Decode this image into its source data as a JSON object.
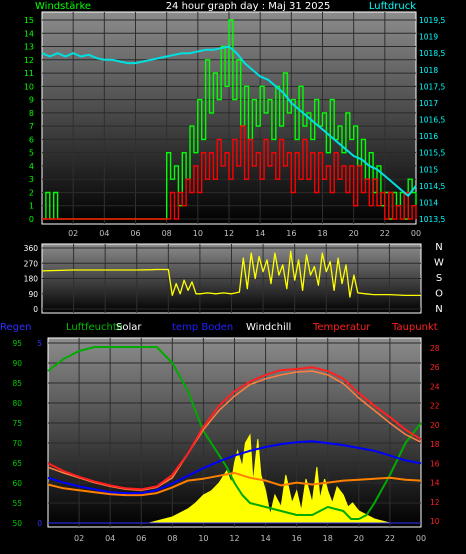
{
  "title": "24 hour graph day : Maj 31 2025",
  "colors": {
    "background": "#000000",
    "plot_top": "#8a8a8a",
    "plot_bottom": "#000000",
    "wind_speed": "#ff0000",
    "wind_gust": "#00ff00",
    "pressure": "#00e0e0",
    "direction": "#ffff00",
    "humidity": "#00aa00",
    "solar": "#ffff00",
    "temp_indoor": "#0000ff",
    "windchill": "#ff7f3f",
    "temperature": "#ff2020",
    "dewpoint": "#ff8000",
    "rain": "#3030ff"
  },
  "chart_data": [
    {
      "type": "line",
      "labels": {
        "left": "Windstärke",
        "right": "Luftdruck"
      },
      "x_ticks": [
        "02",
        "04",
        "06",
        "08",
        "10",
        "12",
        "14",
        "16",
        "18",
        "20",
        "22",
        "00"
      ],
      "x_range": [
        0,
        24
      ],
      "left_axis": {
        "ticks": [
          "0",
          "1",
          "2",
          "3",
          "4",
          "5",
          "6",
          "7",
          "8",
          "9",
          "10",
          "11",
          "12",
          "13",
          "14",
          "15"
        ],
        "range": [
          0,
          15
        ]
      },
      "right_axis": {
        "ticks": [
          "1013,5",
          "1014",
          "1014,5",
          "1015",
          "1015,5",
          "1016",
          "1016,5",
          "1017",
          "1017,5",
          "1018",
          "1018,5",
          "1019",
          "1019,5"
        ],
        "range": [
          1013.5,
          1019.5
        ]
      },
      "grid": true,
      "series": [
        {
          "name": "Luftdruck",
          "axis": "right",
          "x": [
            0,
            0.5,
            1,
            1.5,
            2,
            2.5,
            3,
            3.5,
            4,
            4.5,
            5,
            5.5,
            6,
            6.5,
            7,
            7.5,
            8,
            8.5,
            9,
            9.5,
            10,
            10.5,
            11,
            11.5,
            12,
            12.5,
            13,
            13.5,
            14,
            14.5,
            15,
            15.5,
            16,
            16.5,
            17,
            17.5,
            18,
            18.5,
            19,
            19.5,
            20,
            20.5,
            21,
            21.5,
            22,
            22.5,
            23,
            23.5,
            24
          ],
          "values": [
            1018.5,
            1018.4,
            1018.5,
            1018.4,
            1018.5,
            1018.4,
            1018.45,
            1018.35,
            1018.3,
            1018.3,
            1018.25,
            1018.2,
            1018.2,
            1018.25,
            1018.3,
            1018.35,
            1018.4,
            1018.45,
            1018.5,
            1018.5,
            1018.55,
            1018.6,
            1018.6,
            1018.65,
            1018.7,
            1018.5,
            1018.2,
            1018.0,
            1017.8,
            1017.7,
            1017.5,
            1017.3,
            1017.0,
            1016.8,
            1016.6,
            1016.4,
            1016.2,
            1016.0,
            1015.8,
            1015.6,
            1015.4,
            1015.3,
            1015.1,
            1015.0,
            1014.8,
            1014.6,
            1014.4,
            1014.2,
            1014.5
          ]
        },
        {
          "name": "Wind gust",
          "axis": "left",
          "x": [
            0,
            0.25,
            0.5,
            0.75,
            1.0,
            1.25,
            7.75,
            8.0,
            8.25,
            8.5,
            8.75,
            9.0,
            9.25,
            9.5,
            9.75,
            10.0,
            10.25,
            10.5,
            10.75,
            11.0,
            11.25,
            11.5,
            11.75,
            12.0,
            12.25,
            12.5,
            12.75,
            13.0,
            13.25,
            13.5,
            13.75,
            14.0,
            14.25,
            14.5,
            14.75,
            15.0,
            15.25,
            15.5,
            15.75,
            16.0,
            16.25,
            16.5,
            16.75,
            17.0,
            17.25,
            17.5,
            17.75,
            18.0,
            18.25,
            18.5,
            18.75,
            19.0,
            19.25,
            19.5,
            19.75,
            20.0,
            20.25,
            20.5,
            20.75,
            21.0,
            21.25,
            21.5,
            21.75,
            22.0,
            22.25,
            22.5,
            22.75,
            23.0,
            23.25,
            23.5,
            23.75,
            24.0
          ],
          "values": [
            0,
            2,
            0,
            2,
            0,
            0,
            0,
            5,
            3,
            4,
            1,
            5,
            3,
            7,
            5,
            9,
            6,
            12,
            8,
            11,
            9,
            13,
            10,
            15,
            9,
            12,
            7,
            10,
            6,
            9,
            7,
            10,
            8,
            9,
            6,
            10,
            7,
            11,
            8,
            9,
            6,
            10,
            7,
            8,
            6,
            9,
            7,
            8,
            5,
            9,
            6,
            7,
            5,
            8,
            6,
            7,
            4,
            6,
            3,
            5,
            2,
            4,
            1,
            2,
            0,
            2,
            1,
            2,
            0,
            3,
            2,
            1
          ]
        },
        {
          "name": "Wind speed",
          "axis": "left",
          "x": [
            0,
            8.0,
            8.25,
            8.5,
            8.75,
            9.0,
            9.25,
            9.5,
            9.75,
            10.0,
            10.25,
            10.5,
            10.75,
            11.0,
            11.25,
            11.5,
            11.75,
            12.0,
            12.25,
            12.5,
            12.75,
            13.0,
            13.25,
            13.5,
            13.75,
            14.0,
            14.25,
            14.5,
            14.75,
            15.0,
            15.25,
            15.5,
            15.75,
            16.0,
            16.25,
            16.5,
            16.75,
            17.0,
            17.25,
            17.5,
            17.75,
            18.0,
            18.25,
            18.5,
            18.75,
            19.0,
            19.25,
            19.5,
            19.75,
            20.0,
            20.25,
            20.5,
            20.75,
            21.0,
            21.25,
            21.5,
            21.75,
            22.0,
            22.25,
            22.5,
            22.75,
            23.0,
            23.25,
            23.5,
            23.75,
            24.0
          ],
          "values": [
            0,
            0,
            2,
            0,
            2,
            1,
            3,
            2,
            4,
            2,
            5,
            3,
            5,
            3,
            6,
            4,
            5,
            3,
            6,
            4,
            7,
            3,
            6,
            4,
            5,
            3,
            6,
            4,
            5,
            3,
            6,
            4,
            5,
            2,
            5,
            3,
            6,
            3,
            5,
            2,
            5,
            3,
            4,
            2,
            5,
            3,
            4,
            2,
            4,
            1,
            4,
            2,
            3,
            1,
            3,
            1,
            2,
            0,
            2,
            0,
            1,
            0,
            2,
            0,
            1,
            0
          ]
        }
      ]
    },
    {
      "type": "scatter",
      "x_range": [
        0,
        24
      ],
      "left_axis": {
        "ticks": [
          "0",
          "90",
          "180",
          "270",
          "360"
        ],
        "range": [
          0,
          360
        ]
      },
      "right_labels": [
        "N",
        "W",
        "S",
        "O",
        "N"
      ],
      "grid": true,
      "series": [
        {
          "name": "Wind direction",
          "x": [
            0,
            2,
            4,
            6,
            7,
            7.25,
            7.5,
            7.75,
            7.9,
            8.0,
            8.25,
            8.5,
            8.75,
            9.0,
            9.25,
            9.5,
            9.75,
            10.0,
            10.5,
            11.0,
            11.5,
            12.0,
            12.5,
            12.75,
            13.0,
            13.25,
            13.5,
            13.75,
            14.0,
            14.25,
            14.5,
            14.75,
            15.0,
            15.25,
            15.5,
            15.75,
            16.0,
            16.25,
            16.5,
            16.75,
            17.0,
            17.25,
            17.5,
            17.75,
            18.0,
            18.25,
            18.5,
            18.75,
            19.0,
            19.25,
            19.5,
            19.75,
            20.0,
            20.5,
            21.0,
            22.0,
            23.0,
            24.0
          ],
          "values": [
            225,
            230,
            230,
            230,
            232,
            233,
            233,
            233,
            233,
            233,
            80,
            150,
            90,
            170,
            110,
            160,
            90,
            90,
            95,
            90,
            95,
            90,
            100,
            300,
            120,
            330,
            180,
            310,
            220,
            290,
            150,
            330,
            200,
            260,
            120,
            340,
            170,
            290,
            110,
            320,
            200,
            250,
            140,
            330,
            220,
            280,
            110,
            300,
            150,
            260,
            70,
            200,
            95,
            90,
            85,
            85,
            80,
            80
          ]
        }
      ]
    },
    {
      "type": "line",
      "legend": [
        "Regen",
        "Luftfeuchte",
        "Solar",
        "temp Boden",
        "Windchill",
        "Temperatur",
        "Taupunkt"
      ],
      "x_ticks": [
        "02",
        "04",
        "06",
        "08",
        "10",
        "12",
        "14",
        "16",
        "18",
        "20",
        "22",
        "00"
      ],
      "x_range": [
        0,
        24
      ],
      "left_axis": {
        "ticks": [
          "50",
          "55",
          "60",
          "65",
          "70",
          "75",
          "80",
          "85",
          "90",
          "95"
        ],
        "range": [
          50,
          95
        ]
      },
      "rain_axis": {
        "ticks": [
          "0",
          "5"
        ],
        "range": [
          0,
          5
        ]
      },
      "right_axis": {
        "ticks": [
          "10",
          "12",
          "14",
          "16",
          "18",
          "20",
          "22",
          "24",
          "26",
          "28"
        ],
        "range": [
          10,
          28
        ]
      },
      "grid": true,
      "series": [
        {
          "name": "Luftfeuchte",
          "axis": "left",
          "x": [
            0,
            1,
            2,
            3,
            4,
            5,
            6,
            7,
            8,
            9,
            9.5,
            10,
            10.5,
            11,
            11.5,
            12,
            12.5,
            13,
            14,
            15,
            16,
            17,
            18,
            19,
            19.5,
            20,
            20.5,
            21,
            22,
            23,
            24
          ],
          "values": [
            88,
            91,
            93,
            94,
            94,
            94,
            94,
            94,
            90,
            83,
            78,
            73,
            70,
            67,
            64,
            60,
            57,
            55,
            54,
            53,
            52,
            52,
            54,
            53,
            51,
            51,
            52,
            55,
            62,
            70,
            75
          ]
        },
        {
          "name": "Solar",
          "axis": "left",
          "x": [
            0,
            6.5,
            7,
            7.5,
            8,
            8.5,
            9,
            9.5,
            10,
            10.5,
            11,
            11.5,
            11.8,
            12,
            12.2,
            12.5,
            12.7,
            13.0,
            13.2,
            13.5,
            13.7,
            14,
            14.3,
            14.6,
            15,
            15.3,
            15.7,
            16,
            16.3,
            16.6,
            17,
            17.3,
            17.5,
            17.8,
            18,
            18.3,
            18.6,
            19,
            19.3,
            19.6,
            20,
            20.5,
            21,
            21.5,
            22,
            24
          ],
          "values": [
            50,
            50,
            50.5,
            51,
            51.5,
            52.5,
            53.5,
            55,
            57,
            58,
            60,
            63,
            60,
            65,
            68,
            64,
            70,
            72,
            60,
            71,
            62,
            58,
            52,
            57,
            54,
            62,
            55,
            58,
            53,
            61,
            55,
            64,
            56,
            61,
            58,
            55,
            59,
            57,
            54,
            55,
            53,
            52,
            51,
            50.5,
            50,
            50
          ]
        },
        {
          "name": "temp Boden",
          "axis": "right",
          "x": [
            0,
            1,
            2,
            3,
            4,
            5,
            6,
            7,
            8,
            9,
            10,
            11,
            12,
            13,
            14,
            15,
            16,
            17,
            18,
            19,
            20,
            21,
            22,
            23,
            24
          ],
          "values": [
            14.5,
            14.0,
            13.6,
            13.3,
            13.0,
            12.9,
            12.9,
            13.2,
            13.9,
            14.7,
            15.5,
            16.2,
            16.8,
            17.3,
            17.7,
            18.0,
            18.2,
            18.3,
            18.1,
            17.9,
            17.6,
            17.3,
            16.8,
            16.3,
            16.0
          ]
        },
        {
          "name": "Windchill",
          "axis": "right",
          "x": [
            0,
            1,
            2,
            3,
            4,
            5,
            6,
            7,
            8,
            9,
            10,
            11,
            12,
            13,
            14,
            15,
            16,
            17,
            18,
            19,
            20,
            21,
            22,
            23,
            24
          ],
          "values": [
            15.6,
            15.0,
            14.5,
            14.0,
            13.6,
            13.3,
            13.2,
            13.5,
            14.5,
            17.0,
            19.5,
            21.5,
            23.0,
            24.2,
            24.8,
            25.2,
            25.5,
            25.6,
            25.2,
            24.3,
            22.8,
            21.5,
            20.2,
            19.0,
            18.2
          ]
        },
        {
          "name": "Temperatur",
          "axis": "right",
          "x": [
            0,
            1,
            2,
            3,
            4,
            5,
            6,
            7,
            8,
            9,
            10,
            11,
            12,
            13,
            14,
            15,
            16,
            17,
            18,
            19,
            20,
            21,
            22,
            23,
            24
          ],
          "values": [
            16.0,
            15.2,
            14.6,
            14.1,
            13.7,
            13.4,
            13.3,
            13.6,
            14.8,
            17.0,
            19.8,
            22.0,
            23.5,
            24.5,
            25.2,
            25.7,
            25.8,
            26.0,
            25.6,
            24.8,
            23.3,
            22.0,
            20.8,
            19.5,
            18.5
          ]
        },
        {
          "name": "Taupunkt",
          "axis": "right",
          "x": [
            0,
            1,
            2,
            3,
            4,
            5,
            6,
            7,
            8,
            9,
            10,
            11,
            12,
            13,
            14,
            15,
            16,
            17,
            18,
            19,
            20,
            21,
            22,
            23,
            24
          ],
          "values": [
            13.8,
            13.4,
            13.2,
            13.0,
            12.8,
            12.7,
            12.7,
            12.9,
            13.5,
            14.2,
            14.4,
            14.7,
            15.0,
            14.5,
            14.2,
            13.7,
            14.0,
            13.8,
            14.0,
            14.2,
            14.3,
            14.4,
            14.5,
            14.3,
            14.2
          ]
        },
        {
          "name": "Regen",
          "axis": "rain",
          "x": [
            0,
            24
          ],
          "values": [
            0,
            0
          ]
        }
      ]
    }
  ]
}
